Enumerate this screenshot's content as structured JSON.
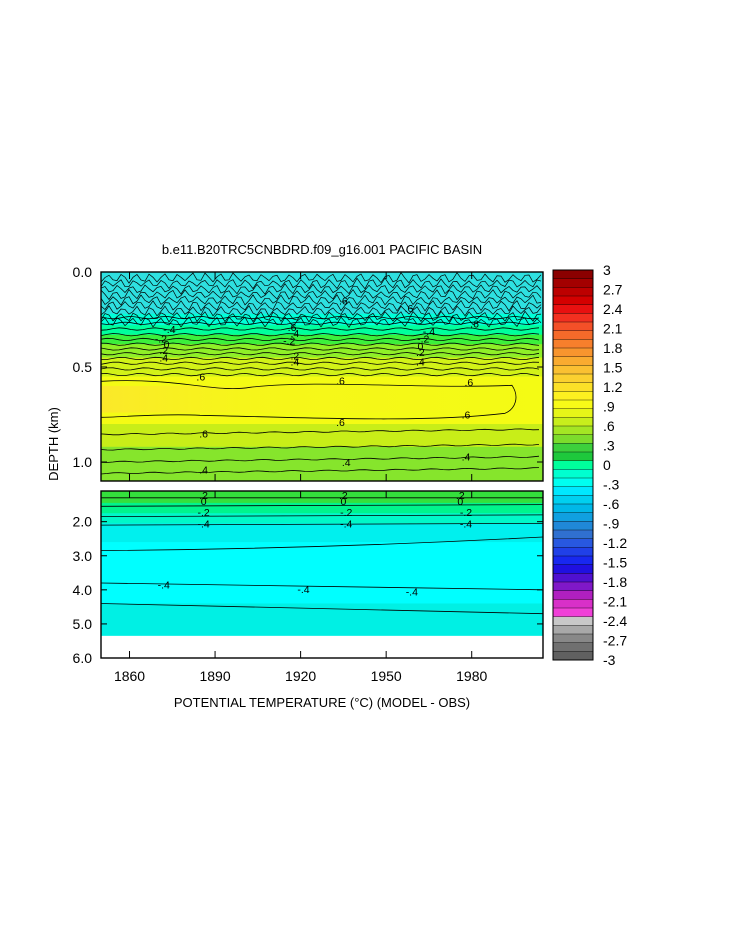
{
  "chart_data": {
    "type": "heatmap",
    "title": "b.e11.B20TRC5CNBDRD.f09_g16.001 PACIFIC BASIN",
    "xlabel": "POTENTIAL TEMPERATURE (°C) (MODEL - OBS)",
    "ylabel": "DEPTH (km)",
    "xlim": [
      1850,
      2005
    ],
    "x_ticks": [
      "1860",
      "1890",
      "1920",
      "1950",
      "1980"
    ],
    "upper_panel": {
      "ylim": [
        0.0,
        1.1
      ],
      "y_ticks": [
        "0.0",
        "0.5",
        "1.0"
      ],
      "layers": [
        {
          "depth_top": 0.0,
          "depth_bottom": 0.22,
          "value": -0.5,
          "color": "#2ee0e0"
        },
        {
          "depth_top": 0.22,
          "depth_bottom": 0.28,
          "value": -0.4,
          "color": "#00ffd8"
        },
        {
          "depth_top": 0.28,
          "depth_bottom": 0.33,
          "value": -0.2,
          "color": "#00ff9c"
        },
        {
          "depth_top": 0.33,
          "depth_bottom": 0.38,
          "value": 0.0,
          "color": "#3cf03c"
        },
        {
          "depth_top": 0.38,
          "depth_bottom": 0.45,
          "value": 0.2,
          "color": "#8fef28"
        },
        {
          "depth_top": 0.45,
          "depth_bottom": 0.55,
          "value": 0.4,
          "color": "#d2f218"
        },
        {
          "depth_top": 0.55,
          "depth_bottom": 0.8,
          "value": 0.6,
          "color": "#f4fb14"
        },
        {
          "depth_top": 0.8,
          "depth_bottom": 0.92,
          "value": 0.5,
          "color": "#c8ee18"
        },
        {
          "depth_top": 0.92,
          "depth_bottom": 1.1,
          "value": 0.3,
          "color": "#86e52c"
        }
      ],
      "contour_labels": [
        {
          "label": ".6",
          "x": 1935,
          "depth": 0.15
        },
        {
          "label": ".6",
          "x": 1958,
          "depth": 0.19
        },
        {
          "label": "-.4",
          "x": 1874,
          "depth": 0.3
        },
        {
          "label": "-.2",
          "x": 1871,
          "depth": 0.35
        },
        {
          "label": "0",
          "x": 1873,
          "depth": 0.38
        },
        {
          "label": ".2",
          "x": 1872,
          "depth": 0.41
        },
        {
          "label": ".4",
          "x": 1872,
          "depth": 0.45
        },
        {
          "label": ".6",
          "x": 1917,
          "depth": 0.29
        },
        {
          "label": ".4",
          "x": 1918,
          "depth": 0.32
        },
        {
          "label": "-.2",
          "x": 1916,
          "depth": 0.36
        },
        {
          "label": ".2",
          "x": 1918,
          "depth": 0.44
        },
        {
          "label": ".4",
          "x": 1918,
          "depth": 0.47
        },
        {
          "label": "-.4",
          "x": 1965,
          "depth": 0.31
        },
        {
          "label": "-.2",
          "x": 1963,
          "depth": 0.35
        },
        {
          "label": "0",
          "x": 1962,
          "depth": 0.39
        },
        {
          "label": ".2",
          "x": 1962,
          "depth": 0.42
        },
        {
          "label": ".4",
          "x": 1962,
          "depth": 0.47
        },
        {
          "label": ".6",
          "x": 1981,
          "depth": 0.27
        },
        {
          "label": ".6",
          "x": 1885,
          "depth": 0.55
        },
        {
          "label": ".6",
          "x": 1934,
          "depth": 0.57
        },
        {
          "label": ".6",
          "x": 1979,
          "depth": 0.58
        },
        {
          "label": ".6",
          "x": 1978,
          "depth": 0.75
        },
        {
          "label": ".6",
          "x": 1934,
          "depth": 0.79
        },
        {
          "label": ".6",
          "x": 1886,
          "depth": 0.85
        },
        {
          "label": ".4",
          "x": 1886,
          "depth": 1.04
        },
        {
          "label": ".4",
          "x": 1936,
          "depth": 1.0
        },
        {
          "label": ".4",
          "x": 1978,
          "depth": 0.97
        }
      ]
    },
    "lower_panel": {
      "ylim": [
        1.1,
        6.0
      ],
      "y_ticks": [
        "2.0",
        "3.0",
        "4.0",
        "5.0",
        "6.0"
      ],
      "layers": [
        {
          "depth_top": 1.1,
          "depth_bottom": 1.45,
          "value": 0.2,
          "color": "#34e03c"
        },
        {
          "depth_top": 1.45,
          "depth_bottom": 1.75,
          "value": 0.0,
          "color": "#00f48c"
        },
        {
          "depth_top": 1.75,
          "depth_bottom": 2.05,
          "value": -0.2,
          "color": "#00f8c8"
        },
        {
          "depth_top": 2.05,
          "depth_bottom": 2.6,
          "value": -0.4,
          "color": "#00f0ee"
        },
        {
          "depth_top": 2.6,
          "depth_bottom": 4.4,
          "value": -0.5,
          "color": "#00ffff"
        },
        {
          "depth_top": 4.4,
          "depth_bottom": 5.35,
          "value": -0.4,
          "color": "#00f0e4"
        }
      ],
      "data_bottom": 5.35,
      "contour_labels": [
        {
          "label": ".2",
          "x": 1886,
          "depth": 1.22
        },
        {
          "label": "0",
          "x": 1886,
          "depth": 1.4
        },
        {
          "label": "-.2",
          "x": 1886,
          "depth": 1.72
        },
        {
          "label": "-.4",
          "x": 1886,
          "depth": 2.05
        },
        {
          "label": ".2",
          "x": 1935,
          "depth": 1.22
        },
        {
          "label": "0",
          "x": 1935,
          "depth": 1.4
        },
        {
          "label": "-.2",
          "x": 1936,
          "depth": 1.72
        },
        {
          "label": "-.4",
          "x": 1936,
          "depth": 2.05
        },
        {
          "label": ".2",
          "x": 1976,
          "depth": 1.22
        },
        {
          "label": "0",
          "x": 1976,
          "depth": 1.4
        },
        {
          "label": "-.2",
          "x": 1978,
          "depth": 1.72
        },
        {
          "label": "-.4",
          "x": 1978,
          "depth": 2.05
        },
        {
          "label": "-.4",
          "x": 1872,
          "depth": 3.85
        },
        {
          "label": "-.4",
          "x": 1921,
          "depth": 3.98
        },
        {
          "label": "-.4",
          "x": 1959,
          "depth": 4.05
        }
      ]
    },
    "colorbar": {
      "labels": [
        "3",
        "2.7",
        "2.4",
        "2.1",
        "1.8",
        "1.5",
        "1.2",
        ".9",
        ".6",
        ".3",
        "0",
        "-.3",
        "-.6",
        "-.9",
        "-1.2",
        "-1.5",
        "-1.8",
        "-2.1",
        "-2.4",
        "-2.7",
        "-3"
      ],
      "colors": [
        "#8b0000",
        "#a30000",
        "#bd0000",
        "#d40000",
        "#e81010",
        "#f23020",
        "#f45028",
        "#f56a2a",
        "#f77f2c",
        "#f8952e",
        "#f9ab30",
        "#fac032",
        "#fbd030",
        "#fce028",
        "#fdf020",
        "#f8fa18",
        "#e6f518",
        "#c8ee1c",
        "#a4e624",
        "#7cdc2c",
        "#3cd03c",
        "#1ec83c",
        "#00ff9c",
        "#00ffd0",
        "#00fff0",
        "#00e8ff",
        "#00d0f0",
        "#00b8e8",
        "#10a0e0",
        "#2088d8",
        "#3070d0",
        "#2858e0",
        "#2040e8",
        "#1828f0",
        "#2010e0",
        "#5010d0",
        "#8018c8",
        "#b020c0",
        "#d830c8",
        "#f040d8",
        "#c8c8c8",
        "#a8a8a8",
        "#888888",
        "#707070",
        "#606060"
      ]
    }
  }
}
